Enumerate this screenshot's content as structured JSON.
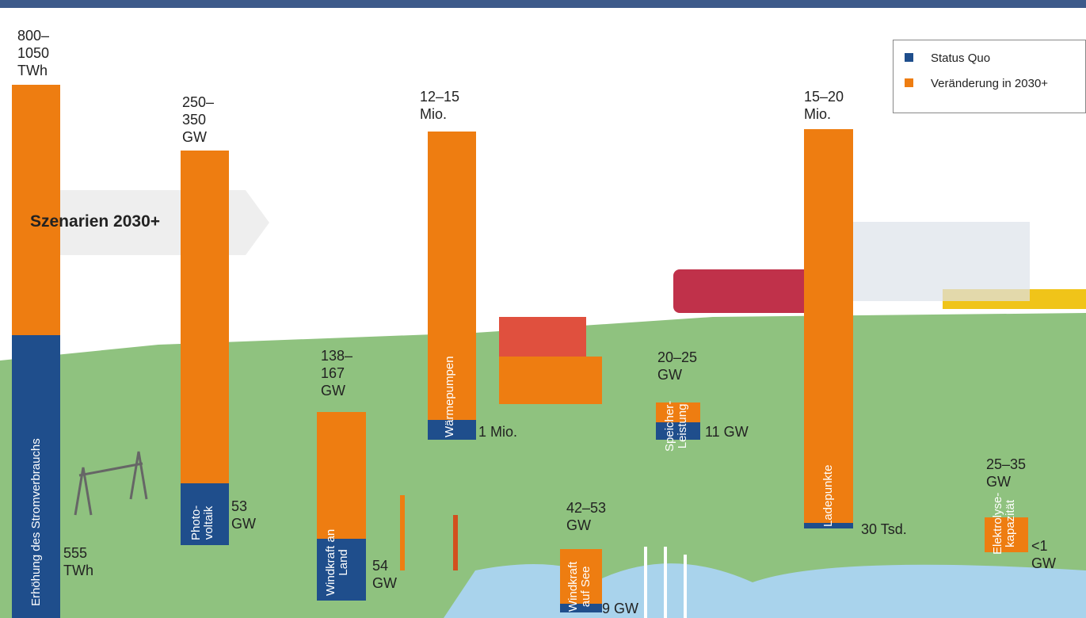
{
  "banner": "Szenarien 2030+",
  "legend": {
    "items": [
      {
        "label": "Status Quo",
        "color": "#1f4e8c"
      },
      {
        "label": "Veränderung in 2030+",
        "color": "#ee7d11"
      }
    ]
  },
  "measures": [
    {
      "label": "Erhöhung des Stromverbrauchs",
      "target": "800–\n1050\nTWh",
      "status": "555\nTWh"
    },
    {
      "label": "Photo-\nvoltaik",
      "target": "250–\n350\nGW",
      "status": "53\nGW"
    },
    {
      "label": "Windkraft an\nLand",
      "target": "138–\n167\nGW",
      "status": "54\nGW"
    },
    {
      "label": "Wärmepumpen",
      "target": "12–15\nMio.",
      "status": "1 Mio."
    },
    {
      "label": "Windkraft\nauf See",
      "target": "42–53\nGW",
      "status": "9 GW"
    },
    {
      "label": "Speicher-\nLeistung",
      "target": "20–25\nGW",
      "status": "11 GW"
    },
    {
      "label": "Ladepunkte",
      "target": "15–20\nMio.",
      "status": "30 Tsd."
    },
    {
      "label": "Elektrolyse-\nkapazität",
      "target": "25–35\nGW",
      "status": "<1\nGW"
    }
  ]
}
